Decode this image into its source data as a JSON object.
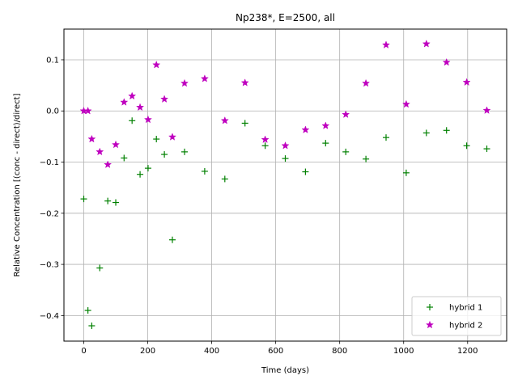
{
  "chart_data": {
    "type": "scatter",
    "title": "Np238*, E=2500, all",
    "xlabel": "Time (days)",
    "ylabel": "Relative Concentration [(conc - direct)/direct]",
    "xlim": [
      -62,
      1322
    ],
    "ylim": [
      -0.45,
      0.16
    ],
    "xticks": [
      0,
      200,
      400,
      600,
      800,
      1000,
      1200
    ],
    "xtick_labels": [
      "0",
      "200",
      "400",
      "600",
      "800",
      "1000",
      "1200"
    ],
    "yticks": [
      -0.4,
      -0.3,
      -0.2,
      -0.1,
      0.0,
      0.1
    ],
    "ytick_labels": [
      "−0.4",
      "−0.3",
      "−0.2",
      "−0.1",
      "0.0",
      "0.1"
    ],
    "grid": true,
    "legend_position": "bottom-right",
    "series": [
      {
        "name": "hybrid 1",
        "marker": "plus",
        "color": "#008000",
        "x": [
          0,
          13,
          25,
          50,
          75,
          100,
          126,
          151,
          176,
          201,
          227,
          252,
          277,
          315,
          378,
          441,
          504,
          567,
          630,
          693,
          756,
          819,
          882,
          945,
          1008,
          1071,
          1134,
          1197,
          1260
        ],
        "y": [
          -0.172,
          -0.39,
          -0.42,
          -0.307,
          -0.176,
          -0.179,
          -0.092,
          -0.019,
          -0.124,
          -0.112,
          -0.055,
          -0.085,
          -0.252,
          -0.08,
          -0.118,
          -0.133,
          -0.024,
          -0.068,
          -0.093,
          -0.119,
          -0.063,
          -0.08,
          -0.094,
          -0.052,
          -0.121,
          -0.043,
          -0.038,
          -0.068,
          -0.074
        ]
      },
      {
        "name": "hybrid 2",
        "marker": "star",
        "color": "#bf00bf",
        "x": [
          0,
          13,
          25,
          50,
          75,
          100,
          126,
          151,
          176,
          201,
          227,
          252,
          277,
          315,
          378,
          441,
          504,
          567,
          630,
          693,
          756,
          819,
          882,
          945,
          1008,
          1071,
          1134,
          1197,
          1260
        ],
        "y": [
          0.0,
          0.0,
          -0.055,
          -0.08,
          -0.105,
          -0.066,
          0.017,
          0.029,
          0.007,
          -0.017,
          0.09,
          0.023,
          -0.051,
          0.054,
          0.063,
          -0.019,
          0.055,
          -0.056,
          -0.068,
          -0.037,
          -0.029,
          -0.007,
          0.054,
          0.129,
          0.013,
          0.131,
          0.095,
          0.056,
          0.001
        ]
      }
    ]
  }
}
